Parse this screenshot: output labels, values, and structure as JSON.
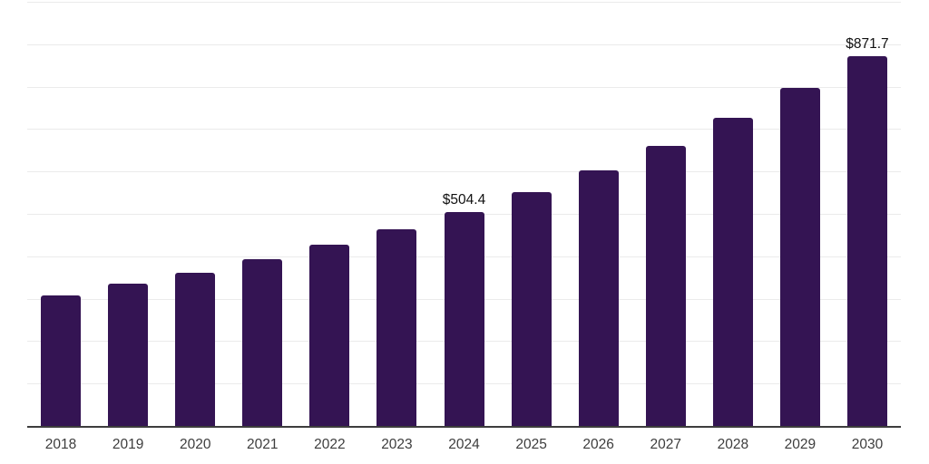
{
  "chart_data": {
    "type": "bar",
    "title": "",
    "xlabel": "",
    "ylabel": "",
    "ylim": [
      0,
      1000
    ],
    "grid_step": 100,
    "grid": true,
    "legend_position": "none",
    "categories": [
      "2018",
      "2019",
      "2020",
      "2021",
      "2022",
      "2023",
      "2024",
      "2025",
      "2026",
      "2027",
      "2028",
      "2029",
      "2030"
    ],
    "values": [
      307,
      335,
      362,
      394,
      427,
      463,
      504.4,
      552,
      602,
      661,
      727,
      797,
      871.7
    ],
    "data_labels": [
      null,
      null,
      null,
      null,
      null,
      null,
      "$504.4",
      null,
      null,
      null,
      null,
      null,
      "$871.7"
    ]
  },
  "colors": {
    "bar": "#341453",
    "gridline": "#ebebeb",
    "axis_line": "#3d3d3d",
    "tick_label": "#3d3d3d",
    "value_label": "#111111",
    "background": "#ffffff"
  }
}
